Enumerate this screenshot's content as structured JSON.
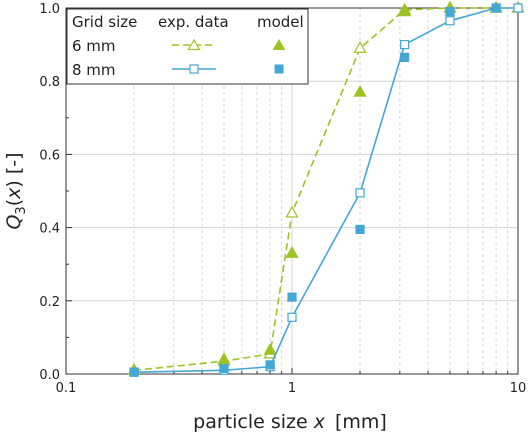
{
  "chart_data": {
    "type": "line",
    "xlabel_prefix": "particle size ",
    "xlabel_var": "x",
    "xlabel_unit": "[mm]",
    "ylabel_main": "Q",
    "ylabel_sub": "3",
    "ylabel_open": "(",
    "ylabel_var": "x",
    "ylabel_close": ") [-]",
    "x_scale": "log",
    "xlim": [
      0.1,
      10
    ],
    "ylim": [
      0,
      1
    ],
    "x_ticks": [
      0.1,
      1,
      10
    ],
    "x_tick_labels": [
      "0.1",
      "1",
      "10"
    ],
    "y_ticks": [
      0,
      0.2,
      0.4,
      0.6,
      0.8,
      1.0
    ],
    "y_tick_labels": [
      "0.0",
      "0.2",
      "0.4",
      "0.6",
      "0.8",
      "1.0"
    ],
    "grid": true,
    "legend": {
      "placement": "top-left",
      "header": [
        "Grid size",
        "exp. data",
        "model"
      ],
      "rows": [
        "6 mm",
        "8 mm"
      ]
    },
    "series": [
      {
        "name": "6 mm",
        "kind": "exp. data",
        "color": "#9dc321",
        "line_style": "dashed",
        "marker": "open-triangle",
        "x": [
          0.2,
          0.5,
          0.8,
          1.0,
          2.0,
          3.15,
          5.0,
          8.0,
          10.0
        ],
        "y": [
          0.01,
          0.035,
          0.055,
          0.44,
          0.89,
          0.995,
          1.0,
          1.0,
          1.0
        ]
      },
      {
        "name": "6 mm",
        "kind": "model",
        "color": "#9dc321",
        "line_style": "none",
        "marker": "filled-triangle",
        "x": [
          0.2,
          0.5,
          0.8,
          1.0,
          2.0,
          3.15,
          5.0,
          8.0
        ],
        "y": [
          0.01,
          0.04,
          0.065,
          0.33,
          0.77,
          0.99,
          1.0,
          1.0
        ]
      },
      {
        "name": "8 mm",
        "kind": "exp. data",
        "color": "#45a7d4",
        "line_style": "solid",
        "marker": "open-square",
        "x": [
          0.2,
          0.5,
          0.8,
          1.0,
          2.0,
          3.15,
          5.0,
          8.0,
          10.0
        ],
        "y": [
          0.005,
          0.01,
          0.02,
          0.155,
          0.495,
          0.9,
          0.965,
          1.0,
          1.0
        ]
      },
      {
        "name": "8 mm",
        "kind": "model",
        "color": "#45a7d4",
        "line_style": "none",
        "marker": "filled-square",
        "x": [
          0.2,
          0.5,
          0.8,
          1.0,
          2.0,
          3.15,
          5.0,
          8.0
        ],
        "y": [
          0.005,
          0.015,
          0.025,
          0.21,
          0.395,
          0.865,
          0.99,
          1.0
        ]
      }
    ]
  }
}
